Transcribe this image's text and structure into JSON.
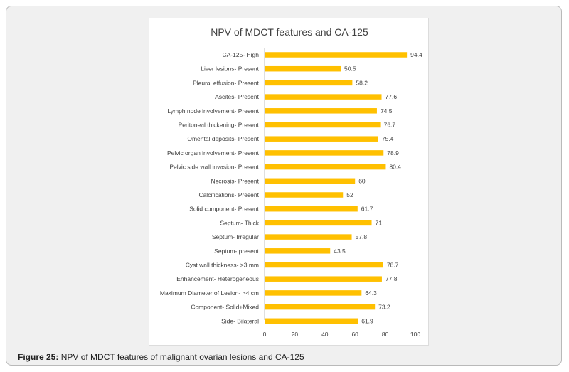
{
  "figure": {
    "caption_label": "Figure 25:",
    "caption_text": " NPV of MDCT features of malignant ovarian lesions and CA-125"
  },
  "chart_data": {
    "type": "bar",
    "orientation": "horizontal",
    "title": "NPV of MDCT features and CA-125",
    "xlabel": "",
    "ylabel": "",
    "xlim": [
      0,
      100
    ],
    "x_ticks": [
      0,
      20,
      40,
      60,
      80,
      100
    ],
    "grid": false,
    "bar_color": "#ffc000",
    "categories": [
      "CA-125- High",
      "Liver lesions- Present",
      "Pleural effusion- Present",
      "Ascites- Present",
      "Lymph node involvement- Present",
      "Peritoneal thickening- Present",
      "Omental deposits- Present",
      "Pelvic organ involvement- Present",
      "Pelvic side wall invasion- Present",
      "Necrosis- Present",
      "Calcifications- Present",
      "Solid component- Present",
      "Septum- Thick",
      "Septum- Irregular",
      "Septum- present",
      "Cyst wall thickness- >3 mm",
      "Enhancement- Heterogeneous",
      "Maximum Diameter of Lesion- >4 cm",
      "Component- Solid+Mixed",
      "Side- Bilateral"
    ],
    "values": [
      94.4,
      50.5,
      58.2,
      77.6,
      74.5,
      76.7,
      75.4,
      78.9,
      80.4,
      60,
      52,
      61.7,
      71,
      57.8,
      43.5,
      78.7,
      77.8,
      64.3,
      73.2,
      61.9
    ],
    "value_labels": [
      "94.4",
      "50.5",
      "58.2",
      "77.6",
      "74.5",
      "76.7",
      "75.4",
      "78.9",
      "80.4",
      "60",
      "52",
      "61.7",
      "71",
      "57.8",
      "43.5",
      "78.7",
      "77.8",
      "64.3",
      "73.2",
      "61.9"
    ]
  }
}
